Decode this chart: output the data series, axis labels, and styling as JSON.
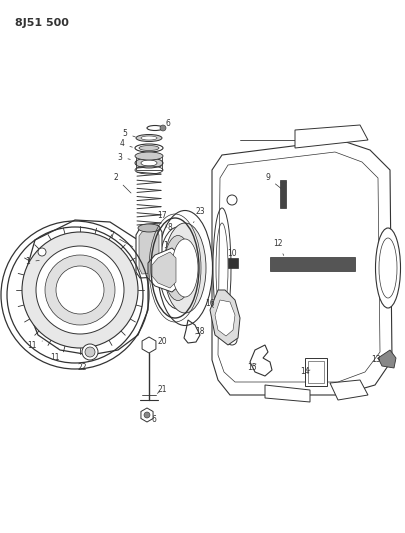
{
  "title": "8J51 500",
  "bg_color": "#ffffff",
  "line_color": "#333333",
  "figsize": [
    4.05,
    5.33
  ],
  "dpi": 100
}
